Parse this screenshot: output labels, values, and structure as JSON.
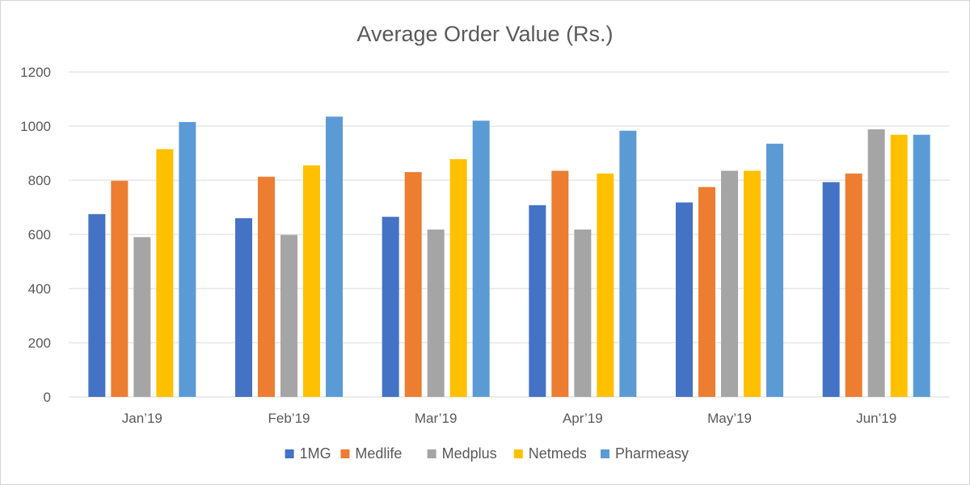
{
  "chart_data": {
    "type": "bar",
    "title": "Average Order Value (Rs.)",
    "xlabel": "",
    "ylabel": "",
    "categories": [
      "Jan’19",
      "Feb’19",
      "Mar’19",
      "Apr’19",
      "May’19",
      "Jun’19"
    ],
    "series": [
      {
        "name": "1MG",
        "color": "#4472C4",
        "values": [
          675,
          660,
          665,
          708,
          718,
          793
        ]
      },
      {
        "name": "Medlife",
        "color": "#ED7D31",
        "values": [
          798,
          813,
          830,
          835,
          775,
          825
        ]
      },
      {
        "name": "Medplus",
        "color": "#A5A5A5",
        "values": [
          590,
          598,
          618,
          618,
          835,
          988
        ]
      },
      {
        "name": "Netmeds",
        "color": "#FFC000",
        "values": [
          915,
          855,
          878,
          825,
          835,
          968
        ]
      },
      {
        "name": "Pharmeasy",
        "color": "#5B9BD5",
        "values": [
          1015,
          1035,
          1020,
          983,
          935,
          968
        ]
      }
    ],
    "ylim": [
      0,
      1200
    ],
    "yticks": [
      0,
      200,
      400,
      600,
      800,
      1000,
      1200
    ],
    "grid": true,
    "legend_position": "bottom"
  }
}
